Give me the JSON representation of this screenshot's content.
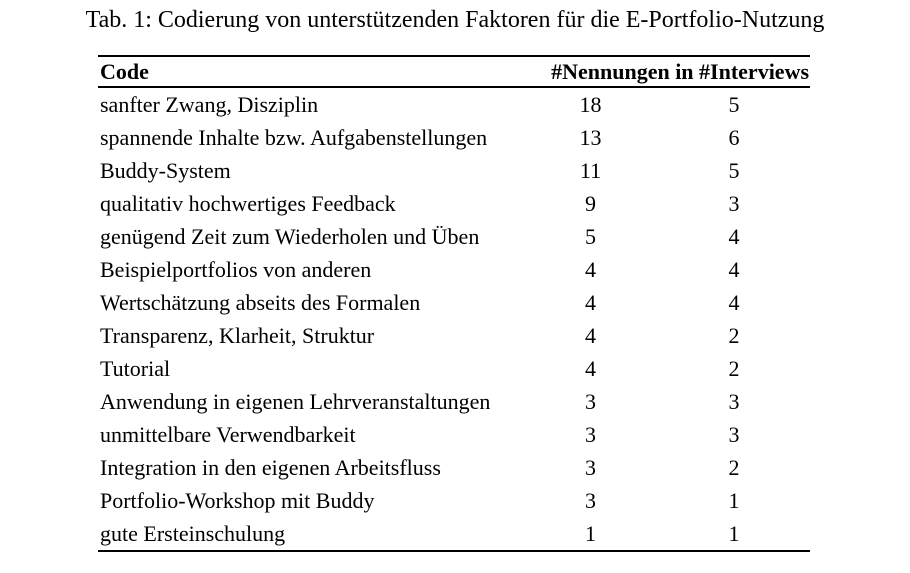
{
  "page": {
    "title": "Tab. 1: Codierung von unterstützenden Faktoren für die E-Portfolio-Nutzung"
  },
  "colors": {
    "text": "#000000",
    "background": "#ffffff",
    "rule": "#000000"
  },
  "table": {
    "header": {
      "code": "Code",
      "counts": "#Nennungen in #Interviews"
    },
    "rows": [
      {
        "code": "sanfter Zwang, Disziplin",
        "nennungen": "18",
        "interviews": "5"
      },
      {
        "code": "spannende Inhalte bzw. Aufgabenstellungen",
        "nennungen": "13",
        "interviews": "6"
      },
      {
        "code": "Buddy-System",
        "nennungen": "11",
        "interviews": "5"
      },
      {
        "code": "qualitativ hochwertiges Feedback",
        "nennungen": "9",
        "interviews": "3"
      },
      {
        "code": "genügend Zeit zum Wiederholen und Üben",
        "nennungen": "5",
        "interviews": "4"
      },
      {
        "code": "Beispielportfolios von anderen",
        "nennungen": "4",
        "interviews": "4"
      },
      {
        "code": "Wertschätzung abseits des Formalen",
        "nennungen": "4",
        "interviews": "4"
      },
      {
        "code": "Transparenz, Klarheit, Struktur",
        "nennungen": "4",
        "interviews": "2"
      },
      {
        "code": "Tutorial",
        "nennungen": "4",
        "interviews": "2"
      },
      {
        "code": "Anwendung in eigenen Lehrveranstaltungen",
        "nennungen": "3",
        "interviews": "3"
      },
      {
        "code": "unmittelbare Verwendbarkeit",
        "nennungen": "3",
        "interviews": "3"
      },
      {
        "code": "Integration in den eigenen Arbeitsfluss",
        "nennungen": "3",
        "interviews": "2"
      },
      {
        "code": "Portfolio-Workshop mit Buddy",
        "nennungen": "3",
        "interviews": "1"
      },
      {
        "code": "gute Ersteinschulung",
        "nennungen": "1",
        "interviews": "1"
      }
    ]
  }
}
